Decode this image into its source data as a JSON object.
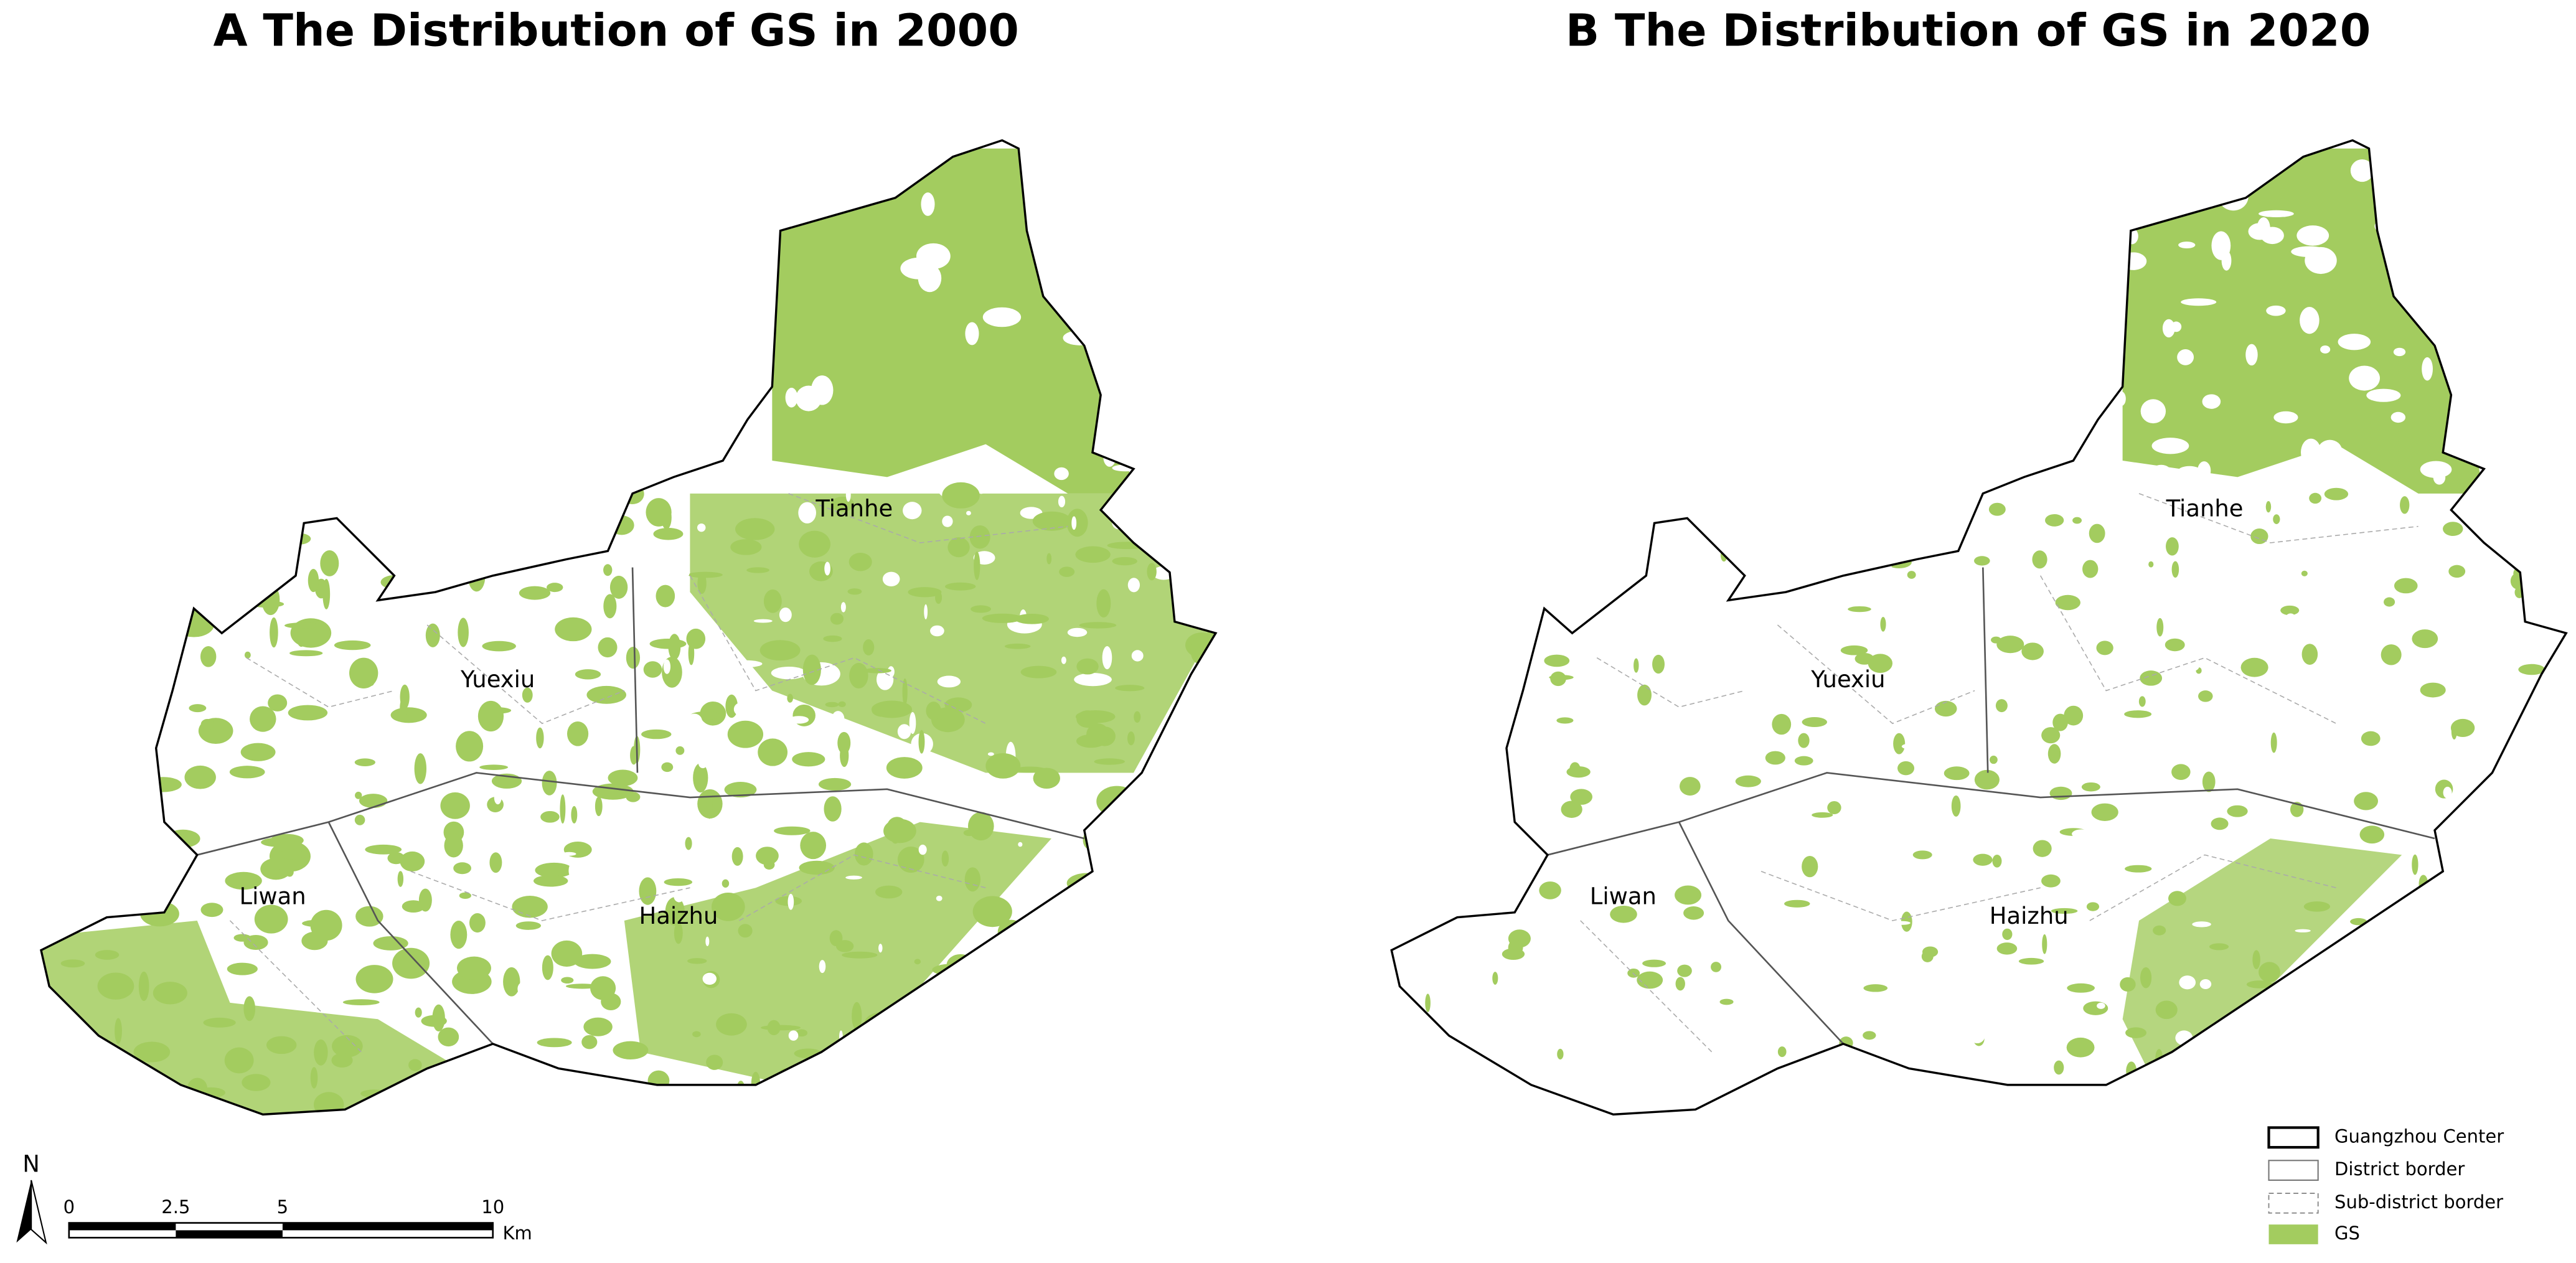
{
  "panels": [
    {
      "title": "A The Distribution of GS in 2000",
      "districts": [
        "Tianhe",
        "Yuexiu",
        "Liwan",
        "Haizhu"
      ]
    },
    {
      "title": "B The Distribution of GS in 2020",
      "districts": [
        "Tianhe",
        "Yuexiu",
        "Liwan",
        "Haizhu"
      ]
    }
  ],
  "north": "N",
  "scale_bar": {
    "labels": [
      "0",
      "2.5",
      "5",
      "10"
    ],
    "unit": "Km"
  },
  "legend": [
    "Guangzhou Center",
    "District border",
    "Sub-district border",
    "GS"
  ]
}
